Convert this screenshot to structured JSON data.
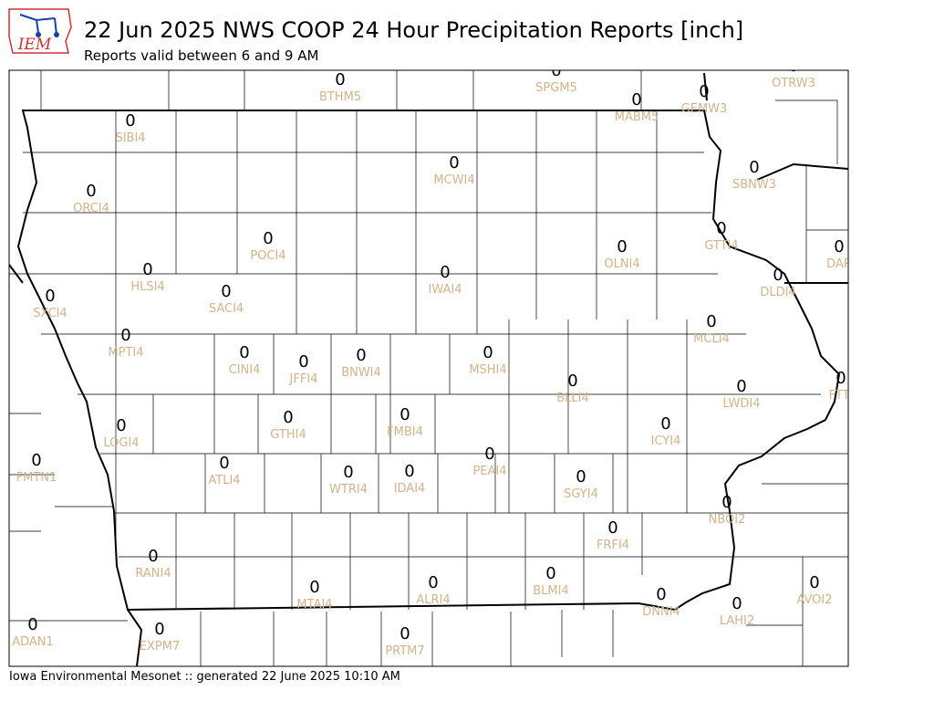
{
  "header": {
    "title": "22 Jun 2025 NWS COOP 24 Hour Precipitation Reports [inch]",
    "subtitle": "Reports valid between 6 and 9 AM"
  },
  "stations": [
    {
      "id": "BTHM5",
      "value": 0
    },
    {
      "id": "SPGM5",
      "value": 0
    },
    {
      "id": "MABM5",
      "value": 0
    },
    {
      "id": "GEMW3",
      "value": 0
    },
    {
      "id": "OTRW3",
      "value": 0
    },
    {
      "id": "SIBI4",
      "value": 0
    },
    {
      "id": "MCWI4",
      "value": 0
    },
    {
      "id": "ORCI4",
      "value": 0
    },
    {
      "id": "SBNW3",
      "value": 0
    },
    {
      "id": "POCI4",
      "value": 0
    },
    {
      "id": "OLNI4",
      "value": 0
    },
    {
      "id": "GTTI4",
      "value": 0
    },
    {
      "id": "DAR",
      "value": 0
    },
    {
      "id": "HLSI4",
      "value": 0
    },
    {
      "id": "DLDI4",
      "value": 0
    },
    {
      "id": "SXCI4",
      "value": 0
    },
    {
      "id": "IWAI4",
      "value": 0
    },
    {
      "id": "SACI4",
      "value": 0
    },
    {
      "id": "MCLI4",
      "value": 0
    },
    {
      "id": "MPTI4",
      "value": 0
    },
    {
      "id": "CINI4",
      "value": 0
    },
    {
      "id": "JFFI4",
      "value": 0
    },
    {
      "id": "BNWI4",
      "value": 0
    },
    {
      "id": "MSHI4",
      "value": 0
    },
    {
      "id": "BLLI4",
      "value": 0
    },
    {
      "id": "LWDI4",
      "value": 0
    },
    {
      "id": "FTTI",
      "value": 0
    },
    {
      "id": "LOGI4",
      "value": 0
    },
    {
      "id": "FMBI4",
      "value": 0
    },
    {
      "id": "GTHI4",
      "value": 0
    },
    {
      "id": "ICYI4",
      "value": 0
    },
    {
      "id": "FMTN1",
      "value": 0
    },
    {
      "id": "ATLI4",
      "value": 0
    },
    {
      "id": "PEAI4",
      "value": 0
    },
    {
      "id": "WTRI4",
      "value": 0
    },
    {
      "id": "IDAI4",
      "value": 0
    },
    {
      "id": "SGYI4",
      "value": 0
    },
    {
      "id": "NBOI2",
      "value": 0
    },
    {
      "id": "FRFI4",
      "value": 0
    },
    {
      "id": "RANI4",
      "value": 0
    },
    {
      "id": "BLMI4",
      "value": 0
    },
    {
      "id": "ALRI4",
      "value": 0
    },
    {
      "id": "MTAI4",
      "value": 0
    },
    {
      "id": "AVOI2",
      "value": 0
    },
    {
      "id": "DNNI4",
      "value": 0
    },
    {
      "id": "LAHI2",
      "value": 0
    },
    {
      "id": "ADAN1",
      "value": 0
    },
    {
      "id": "EXPM7",
      "value": 0
    },
    {
      "id": "PRTM7",
      "value": 0
    }
  ],
  "footer": "Iowa Environmental Mesonet :: generated 22 June 2025 10:10 AM"
}
